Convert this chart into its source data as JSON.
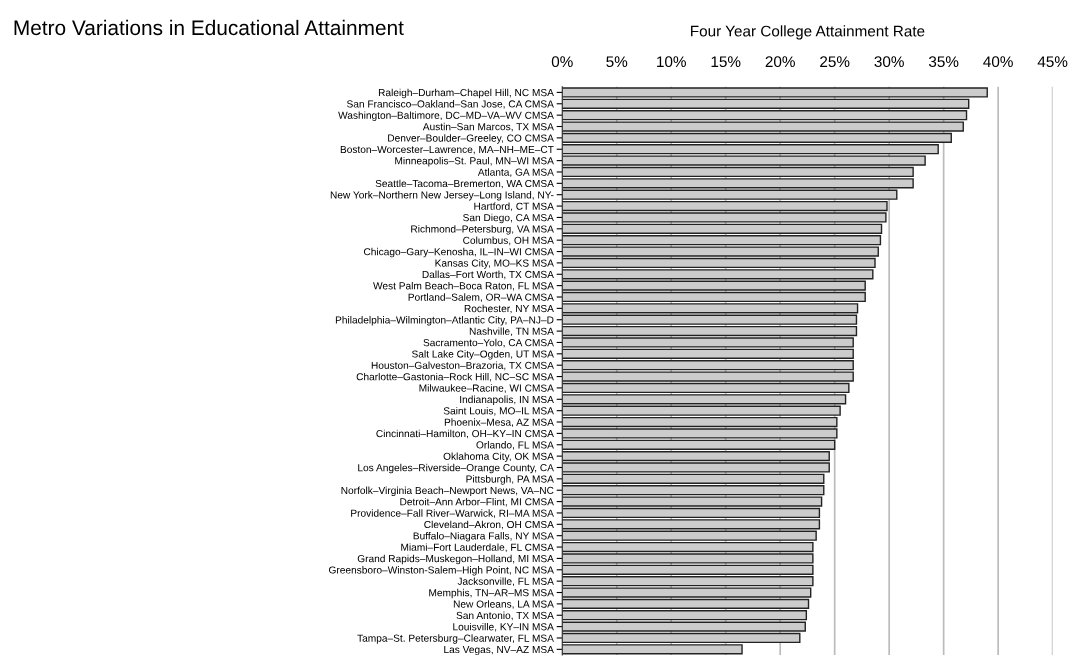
{
  "chart_data": {
    "type": "bar",
    "orientation": "horizontal",
    "title": "Metro Variations in Educational Attainment",
    "xlabel": "Four Year College Attainment Rate",
    "categories": [
      "Raleigh–Durham–Chapel Hill, NC MSA",
      "San Francisco–Oakland–San Jose, CA CMSA",
      "Washington–Baltimore, DC–MD–VA–WV CMSA",
      "Austin–San Marcos, TX MSA",
      "Denver–Boulder–Greeley, CO CMSA",
      "Boston–Worcester–Lawrence, MA–NH–ME–CT",
      "Minneapolis–St. Paul, MN–WI MSA",
      "Atlanta, GA MSA",
      "Seattle–Tacoma–Bremerton, WA CMSA",
      "New York–Northern New Jersey–Long Island, NY-",
      "Hartford, CT MSA",
      "San Diego, CA MSA",
      "Richmond–Petersburg, VA MSA",
      "Columbus, OH MSA",
      "Chicago–Gary–Kenosha, IL–IN–WI CMSA",
      "Kansas City, MO–KS MSA",
      "Dallas–Fort Worth, TX CMSA",
      "West Palm Beach–Boca Raton, FL MSA",
      "Portland–Salem, OR–WA CMSA",
      "Rochester, NY MSA",
      "Philadelphia–Wilmington–Atlantic City, PA–NJ–D",
      "Nashville, TN MSA",
      "Sacramento–Yolo, CA CMSA",
      "Salt Lake City–Ogden, UT MSA",
      "Houston–Galveston–Brazoria, TX CMSA",
      "Charlotte–Gastonia–Rock Hill, NC–SC MSA",
      "Milwaukee–Racine, WI CMSA",
      "Indianapolis, IN MSA",
      "Saint Louis, MO–IL MSA",
      "Phoenix–Mesa, AZ MSA",
      "Cincinnati–Hamilton, OH–KY–IN CMSA",
      "Orlando, FL MSA",
      "Oklahoma City, OK MSA",
      "Los Angeles–Riverside–Orange County, CA",
      "Pittsburgh, PA MSA",
      "Norfolk–Virginia Beach–Newport News, VA–NC",
      "Detroit–Ann Arbor–Flint, MI CMSA",
      "Providence–Fall River–Warwick, RI–MA MSA",
      "Cleveland–Akron, OH CMSA",
      "Buffalo–Niagara Falls, NY MSA",
      "Miami–Fort Lauderdale, FL CMSA",
      "Grand Rapids–Muskegon–Holland, MI MSA",
      "Greensboro–Winston-Salem–High Point, NC MSA",
      "Jacksonville, FL MSA",
      "Memphis, TN–AR–MS MSA",
      "New Orleans, LA MSA",
      "San Antonio, TX MSA",
      "Louisville, KY–IN MSA",
      "Tampa–St. Petersburg–Clearwater, FL MSA",
      "Las Vegas, NV–AZ MSA"
    ],
    "values": [
      39.0,
      37.3,
      37.1,
      36.8,
      35.7,
      34.5,
      33.3,
      32.2,
      32.2,
      30.7,
      29.8,
      29.7,
      29.3,
      29.2,
      29.0,
      28.7,
      28.5,
      27.8,
      27.8,
      27.1,
      27.0,
      27.0,
      26.7,
      26.7,
      26.7,
      26.7,
      26.3,
      26.0,
      25.5,
      25.2,
      25.2,
      25.0,
      24.5,
      24.5,
      24.0,
      24.0,
      23.8,
      23.6,
      23.6,
      23.3,
      23.0,
      23.0,
      23.0,
      23.0,
      22.8,
      22.6,
      22.4,
      22.3,
      21.8,
      16.5
    ],
    "color": "#cccccc",
    "xlim": [
      0,
      45
    ],
    "xticks": [
      {
        "value": 0,
        "label": "0%"
      },
      {
        "value": 5,
        "label": "5%"
      },
      {
        "value": 10,
        "label": "10%"
      },
      {
        "value": 15,
        "label": "15%"
      },
      {
        "value": 20,
        "label": "20%"
      },
      {
        "value": 25,
        "label": "25%"
      },
      {
        "value": 30,
        "label": "30%"
      },
      {
        "value": 35,
        "label": "35%"
      },
      {
        "value": 40,
        "label": "40%"
      },
      {
        "value": 45,
        "label": "45%"
      }
    ],
    "grid": "x"
  }
}
